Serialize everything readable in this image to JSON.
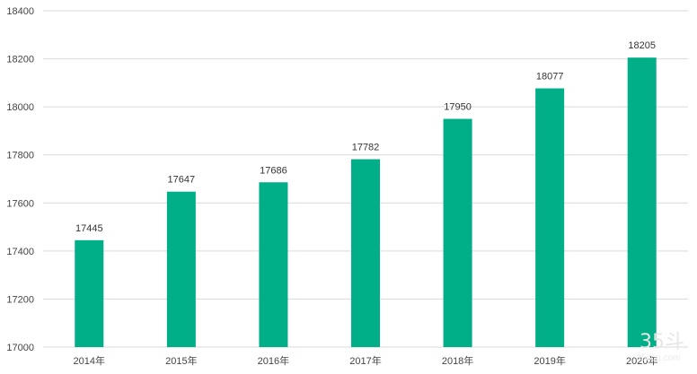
{
  "chart_data": {
    "type": "bar",
    "categories": [
      "2014年",
      "2015年",
      "2016年",
      "2017年",
      "2018年",
      "2019年",
      "2020年"
    ],
    "values": [
      17445,
      17647,
      17686,
      17782,
      17950,
      18077,
      18205
    ],
    "ylim": [
      17000,
      18400
    ],
    "yticks": [
      17000,
      17200,
      17400,
      17600,
      17800,
      18000,
      18200,
      18400
    ],
    "grid": true,
    "data_labels": true,
    "bar_color": "#00ae88",
    "grid_color": "#d9d9d9"
  },
  "watermark": {
    "text": "35斗",
    "subtext": "35dou.com"
  }
}
